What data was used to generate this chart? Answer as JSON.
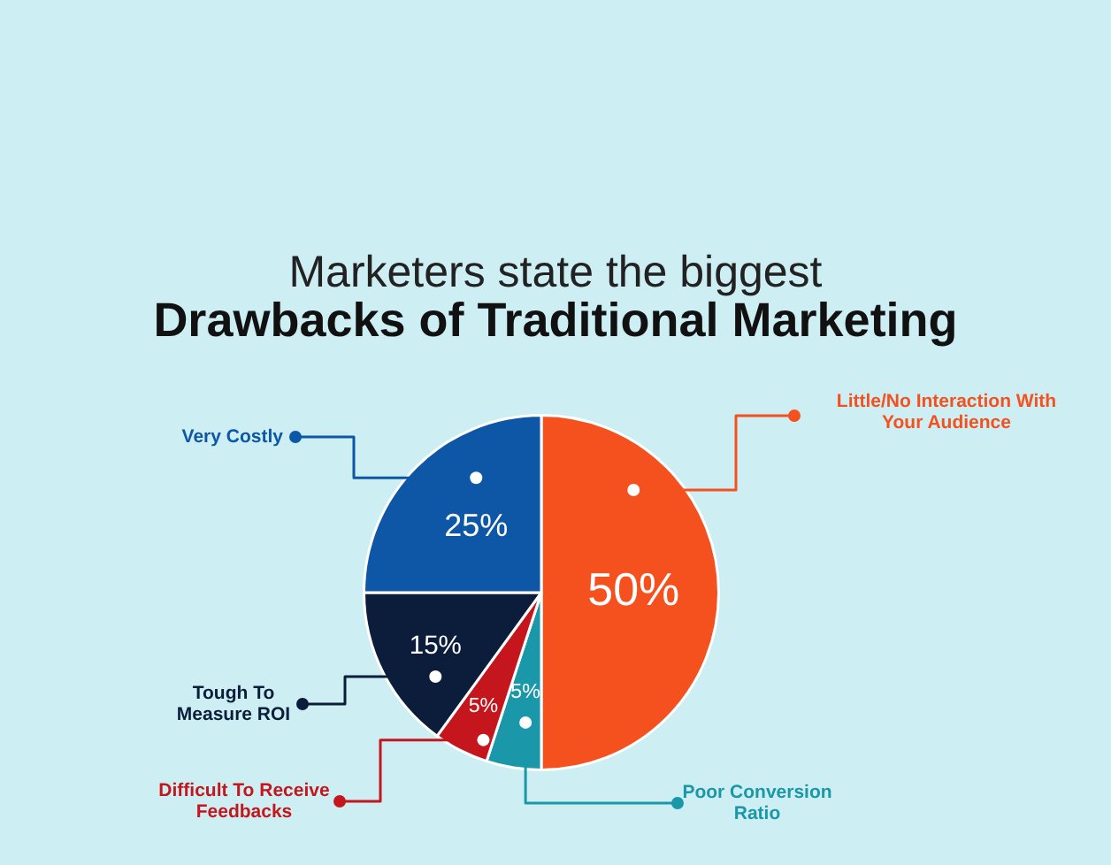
{
  "chart_data": {
    "type": "pie",
    "subtitle": "Marketers state the biggest",
    "title": "Drawbacks of Traditional Marketing",
    "categories": [
      "Little/No Interaction With Your Audience",
      "Poor Conversion Ratio",
      "Difficult To Receive Feedbacks",
      "Tough To Measure ROI",
      "Very Costly"
    ],
    "values": [
      50,
      5,
      5,
      15,
      25
    ],
    "colors": [
      "#f4511e",
      "#1a97a8",
      "#c4161c",
      "#0b1d3a",
      "#0d57a6"
    ],
    "value_labels": [
      "50%",
      "5%",
      "5%",
      "15%",
      "25%"
    ],
    "legend": "left"
  }
}
